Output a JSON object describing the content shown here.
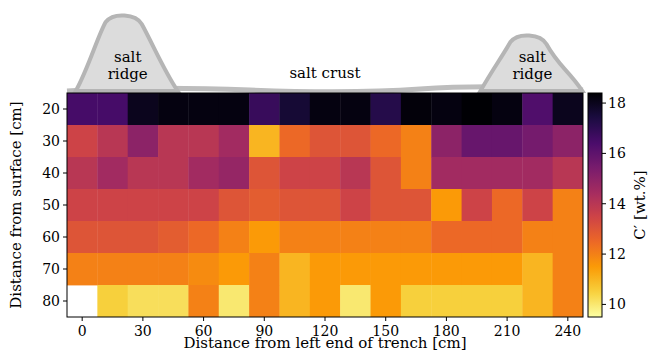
{
  "chart_data": {
    "type": "heatmap",
    "xlabel": "Distance from left end of trench [cm]",
    "ylabel": "Distance from surface [cm]",
    "x": [
      0,
      15,
      30,
      45,
      60,
      75,
      90,
      105,
      120,
      135,
      150,
      165,
      180,
      195,
      210,
      225,
      240
    ],
    "y": [
      20,
      30,
      40,
      50,
      60,
      70,
      80
    ],
    "xlim": [
      -7.5,
      247.5
    ],
    "ylim": [
      15,
      85
    ],
    "xticks": [
      0,
      30,
      60,
      90,
      120,
      150,
      180,
      210,
      240
    ],
    "yticks": [
      20,
      30,
      40,
      50,
      60,
      70,
      80
    ],
    "color": "inferno_r",
    "values": [
      [
        16.5,
        16.5,
        18.0,
        18.2,
        18.2,
        18.2,
        16.8,
        17.6,
        18.2,
        18.2,
        17.2,
        18.3,
        18.2,
        18.4,
        18.2,
        16.3,
        18.0
      ],
      [
        13.5,
        14.0,
        15.0,
        14.0,
        14.0,
        14.5,
        11.0,
        12.5,
        13.0,
        13.0,
        12.5,
        12.0,
        15.0,
        15.8,
        15.8,
        15.5,
        15.0
      ],
      [
        14.0,
        14.5,
        14.0,
        14.0,
        14.5,
        14.8,
        13.0,
        13.5,
        13.5,
        14.0,
        13.0,
        12.0,
        14.5,
        14.5,
        14.5,
        14.5,
        14.0
      ],
      [
        13.5,
        13.5,
        13.5,
        13.5,
        13.5,
        13.0,
        12.8,
        13.0,
        13.0,
        13.5,
        13.0,
        13.0,
        11.5,
        13.5,
        12.5,
        13.5,
        12.0
      ],
      [
        13.0,
        13.0,
        13.0,
        12.8,
        12.5,
        12.0,
        11.5,
        12.0,
        12.0,
        12.0,
        12.0,
        12.0,
        12.5,
        12.5,
        12.5,
        12.0,
        12.0
      ],
      [
        12.0,
        12.0,
        12.0,
        12.0,
        11.8,
        11.5,
        12.0,
        11.0,
        11.5,
        11.5,
        11.5,
        11.5,
        11.5,
        11.5,
        11.5,
        11.0,
        12.0
      ],
      [
        null,
        10.5,
        10.2,
        10.2,
        12.0,
        10.0,
        12.0,
        11.0,
        11.5,
        10.0,
        11.5,
        10.5,
        10.5,
        10.5,
        10.5,
        11.0,
        12.0
      ]
    ],
    "colorbar": {
      "label": "C′ [wt.%]",
      "lim": [
        9.5,
        18.4
      ],
      "ticks": [
        10,
        12,
        14,
        16,
        18
      ]
    },
    "annotations": [
      {
        "text": "salt ridge",
        "x": 22.5
      },
      {
        "text": "salt crust",
        "x": 120
      },
      {
        "text": "salt ridge",
        "x": 222.5
      }
    ]
  }
}
